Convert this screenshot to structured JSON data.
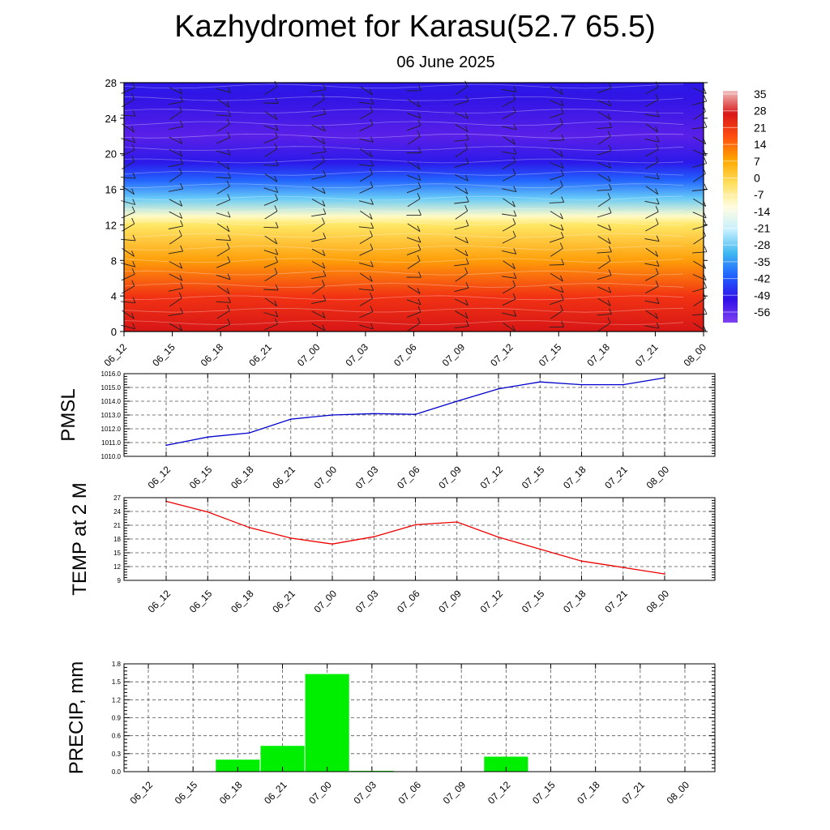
{
  "title": "Kazhydromet for Karasu(52.7 65.5)",
  "subtitle": "06 June 2025",
  "chart_data": [
    {
      "type": "heatmap",
      "name": "temperature-wind-cross-section",
      "xticks": [
        "06_12",
        "06_15",
        "06_18",
        "06_21",
        "07_00",
        "07_03",
        "07_06",
        "07_09",
        "07_12",
        "07_15",
        "07_18",
        "07_21",
        "08_00"
      ],
      "yticks": [
        0,
        4,
        8,
        12,
        16,
        20,
        24,
        28
      ],
      "ylim": [
        0,
        28
      ],
      "colorbar_labels": [
        "35",
        "28",
        "21",
        "14",
        "7",
        "0",
        "-7",
        "-14",
        "-21",
        "-28",
        "-35",
        "-42",
        "-49",
        "-56"
      ],
      "colorbar_colors": [
        "#f0c0c0",
        "#d81818",
        "#ff5010",
        "#ffa800",
        "#ffe060",
        "#fffce0",
        "#c8f0ff",
        "#40b8f0",
        "#2060ff",
        "#3010e8",
        "#8040f0"
      ],
      "layer_temps": [
        {
          "z": 0,
          "t": 30
        },
        {
          "z": 4,
          "t": 24
        },
        {
          "z": 8,
          "t": 12
        },
        {
          "z": 12,
          "t": 1
        },
        {
          "z": 13,
          "t": -6
        },
        {
          "z": 15,
          "t": -22
        },
        {
          "z": 17,
          "t": -38
        },
        {
          "z": 19,
          "t": -52
        },
        {
          "z": 22,
          "t": -58
        },
        {
          "z": 26,
          "t": -54
        },
        {
          "z": 28,
          "t": -52
        }
      ]
    },
    {
      "type": "line",
      "name": "pmsl",
      "ylabel": "PMSL",
      "x": [
        "06_12",
        "06_15",
        "06_18",
        "06_21",
        "07_00",
        "07_03",
        "07_06",
        "07_09",
        "07_12",
        "07_15",
        "07_18",
        "07_21",
        "08_00"
      ],
      "values": [
        1010.8,
        1011.4,
        1011.7,
        1012.7,
        1013.0,
        1013.1,
        1013.05,
        1014.0,
        1014.9,
        1015.4,
        1015.2,
        1015.2,
        1015.7
      ],
      "ylim": [
        1010.0,
        1016.0
      ],
      "yticks": [
        "1010.0",
        "1011.0",
        "1012.0",
        "1013.0",
        "1014.0",
        "1015.0",
        "1016.0"
      ],
      "color": "#0000cc"
    },
    {
      "type": "line",
      "name": "temp-2m",
      "ylabel": "TEMP at 2 M",
      "x": [
        "06_12",
        "06_15",
        "06_18",
        "06_21",
        "07_00",
        "07_03",
        "07_06",
        "07_09",
        "07_12",
        "07_15",
        "07_18",
        "07_21",
        "08_00"
      ],
      "values": [
        26.2,
        23.9,
        20.5,
        18.2,
        16.9,
        18.5,
        21.1,
        21.7,
        18.4,
        15.8,
        13.2,
        11.8,
        10.4
      ],
      "ylim": [
        9,
        27
      ],
      "yticks": [
        "9",
        "12",
        "15",
        "18",
        "21",
        "24",
        "27"
      ],
      "color": "#ee0000"
    },
    {
      "type": "bar",
      "name": "precip",
      "ylabel": "PRECIP, mm",
      "categories": [
        "06_12",
        "06_15",
        "06_18",
        "06_21",
        "07_00",
        "07_03",
        "07_06",
        "07_09",
        "07_12",
        "07_15",
        "07_18",
        "07_21",
        "08_00"
      ],
      "values": [
        0,
        0,
        0.2,
        0.43,
        1.63,
        0.01,
        0,
        0,
        0.25,
        0,
        0,
        0,
        0
      ],
      "ylim": [
        0,
        1.8
      ],
      "yticks": [
        "0.0",
        "0.3",
        "0.6",
        "0.9",
        "1.2",
        "1.5",
        "1.8"
      ],
      "color": "#00ee00"
    }
  ]
}
